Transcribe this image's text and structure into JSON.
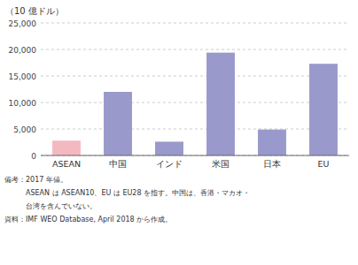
{
  "chart_data": {
    "type": "bar",
    "y_label": "（10 億ドル）",
    "categories": [
      "ASEAN",
      "中国",
      "インド",
      "米国",
      "日本",
      "EU"
    ],
    "values": [
      2800,
      12000,
      2600,
      19400,
      4900,
      17300
    ],
    "colors": [
      "#f4b8c1",
      "#9999cc",
      "#9999cc",
      "#9999cc",
      "#9999cc",
      "#9999cc"
    ],
    "ylim": [
      0,
      25000
    ],
    "yticks": [
      0,
      {
        "value": 5000,
        "label": "5,000"
      },
      {
        "value": 10000,
        "label": "10,000"
      },
      {
        "value": 15000,
        "label": "15,000"
      },
      {
        "value": 20000,
        "label": "20,000"
      },
      {
        "value": 25000,
        "label": "25,000"
      }
    ],
    "grid": true,
    "annotations": [
      "備考：2017 年値。",
      "　　　ASEAN は ASEAN10、EU は EU28 を指す。中国は、香港・マカオ・",
      "　　　台湾を含んでいない。",
      "資料：IMF WEO Database, April 2018 から作成。"
    ]
  }
}
